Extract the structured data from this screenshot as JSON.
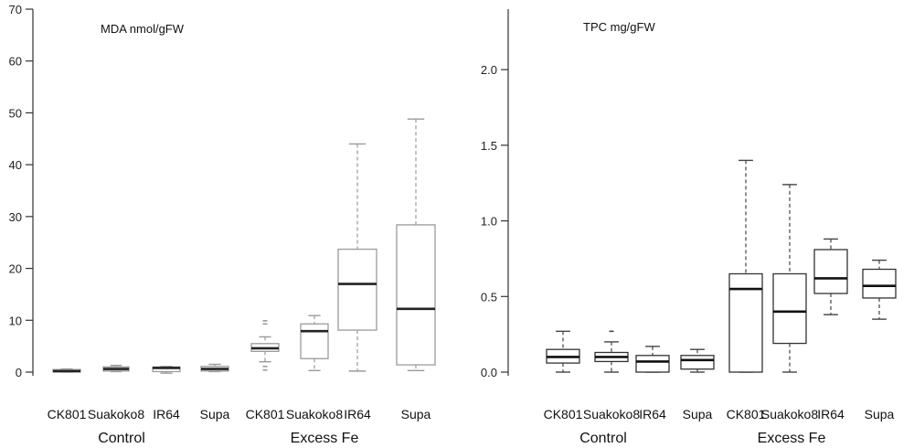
{
  "chart_data": [
    {
      "type": "box",
      "title": "MDA nmol/gFW",
      "ylim": [
        0,
        70
      ],
      "yticks": [
        0,
        10,
        20,
        30,
        40,
        50,
        60,
        70
      ],
      "ytick_labels": [
        "0",
        "10",
        "20",
        "30",
        "40",
        "50",
        "60",
        "70"
      ],
      "categories": [
        "CK801",
        "Suakoko8",
        "IR64",
        "Supa",
        "CK801",
        "Suakoko8",
        "IR64",
        "Supa"
      ],
      "groups": [
        {
          "label": "Control",
          "span": [
            0,
            3
          ]
        },
        {
          "label": "Excess Fe",
          "span": [
            4,
            7
          ]
        }
      ],
      "boxes": [
        {
          "min": 0,
          "q1": 0,
          "median": 0.2,
          "q3": 0.5,
          "max": 0.6,
          "outliers": []
        },
        {
          "min": 0.1,
          "q1": 0.2,
          "median": 0.6,
          "q3": 1.0,
          "max": 1.3,
          "outliers": []
        },
        {
          "min": -0.2,
          "q1": 0.1,
          "median": 0.8,
          "q3": 1.0,
          "max": 1.1,
          "outliers": []
        },
        {
          "min": 0.1,
          "q1": 0.2,
          "median": 0.6,
          "q3": 1.1,
          "max": 1.5,
          "outliers": []
        },
        {
          "min": 2.0,
          "q1": 4.0,
          "median": 4.6,
          "q3": 5.5,
          "max": 6.8,
          "outliers": [
            0.4,
            1.1,
            9.3,
            9.9
          ]
        },
        {
          "min": 0.3,
          "q1": 2.6,
          "median": 7.9,
          "q3": 9.3,
          "max": 10.9,
          "outliers": []
        },
        {
          "min": 0.2,
          "q1": 8.1,
          "median": 17.0,
          "q3": 23.7,
          "max": 44.0,
          "outliers": []
        },
        {
          "min": 0.3,
          "q1": 1.4,
          "median": 12.2,
          "q3": 28.4,
          "max": 48.8,
          "outliers": []
        }
      ]
    },
    {
      "type": "box",
      "title": "TPC mg/gFW",
      "ylim": [
        0,
        2.4
      ],
      "yticks": [
        0,
        0.5,
        1.0,
        1.5,
        2.0
      ],
      "ytick_labels": [
        "0.0",
        "0.5",
        "1.0",
        "1.5",
        "2.0"
      ],
      "categories": [
        "CK801",
        "Suakoko8",
        "IR64",
        "Supa",
        "CK801",
        "Suakoko8",
        "IR64",
        "Supa"
      ],
      "groups": [
        {
          "label": "Control",
          "span": [
            0,
            3
          ]
        },
        {
          "label": "Excess Fe",
          "span": [
            4,
            7
          ]
        }
      ],
      "boxes": [
        {
          "min": 0.0,
          "q1": 0.06,
          "median": 0.1,
          "q3": 0.15,
          "max": 0.27,
          "outliers": []
        },
        {
          "min": 0.0,
          "q1": 0.07,
          "median": 0.1,
          "q3": 0.13,
          "max": 0.2,
          "outliers": [
            0.27
          ]
        },
        {
          "min": 0.0,
          "q1": 0.0,
          "median": 0.07,
          "q3": 0.11,
          "max": 0.17,
          "outliers": []
        },
        {
          "min": 0.0,
          "q1": 0.02,
          "median": 0.08,
          "q3": 0.11,
          "max": 0.15,
          "outliers": []
        },
        {
          "min": 0.0,
          "q1": 0.0,
          "median": 0.55,
          "q3": 0.65,
          "max": 1.4,
          "outliers": []
        },
        {
          "min": 0.0,
          "q1": 0.19,
          "median": 0.4,
          "q3": 0.65,
          "max": 1.24,
          "outliers": []
        },
        {
          "min": 0.38,
          "q1": 0.52,
          "median": 0.62,
          "q3": 0.81,
          "max": 0.88,
          "outliers": []
        },
        {
          "min": 0.35,
          "q1": 0.49,
          "median": 0.57,
          "q3": 0.68,
          "max": 0.74,
          "outliers": []
        }
      ]
    }
  ]
}
